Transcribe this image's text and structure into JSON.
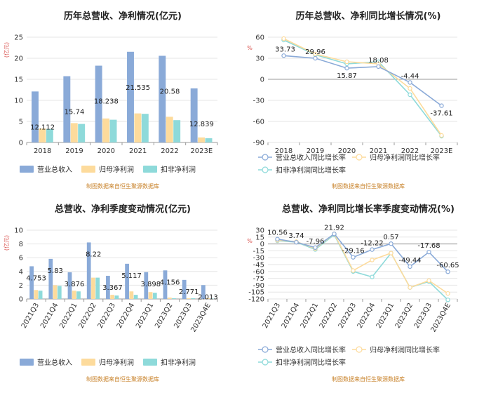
{
  "chart_data": [
    {
      "type": "bar",
      "title": "历年总营收、净利情况(亿元)",
      "unit": "(亿元)",
      "categories": [
        "2018",
        "2019",
        "2020",
        "2021",
        "2022",
        "2023E"
      ],
      "ylim": [
        0,
        25
      ],
      "yticks": [
        0,
        5,
        10,
        15,
        20,
        25
      ],
      "series": [
        {
          "name": "营业总收入",
          "values": [
            12.112,
            15.74,
            18.238,
            21.535,
            20.58,
            12.839
          ]
        },
        {
          "name": "归母净利润",
          "values": [
            3.3,
            4.6,
            5.7,
            6.9,
            6.1,
            1.2
          ]
        },
        {
          "name": "扣非净利润",
          "values": [
            3.2,
            4.4,
            5.4,
            6.8,
            5.3,
            1.0
          ]
        }
      ],
      "labels": [
        "12.112",
        "15.74",
        "18.238",
        "21.535",
        "20.58",
        "12.839"
      ],
      "source": "制图数据来自恒生聚源数据库"
    },
    {
      "type": "line",
      "title": "历年总营收、净利同比增长情况(%)",
      "unit": "%",
      "categories": [
        "2018",
        "2019",
        "2020",
        "2021",
        "2022",
        "2023E"
      ],
      "ylim": [
        -90,
        60
      ],
      "yticks": [
        60,
        30,
        0,
        -30,
        -60,
        -90
      ],
      "series": [
        {
          "name": "营业总收入同比增长率",
          "values": [
            33.73,
            29.96,
            15.87,
            18.08,
            -4.44,
            -37.61
          ]
        },
        {
          "name": "归母净利润同比增长率",
          "values": [
            58,
            36,
            25,
            22,
            -13,
            -80
          ]
        },
        {
          "name": "扣非净利润同比增长率",
          "values": [
            56,
            35,
            22,
            25,
            -22,
            -81
          ]
        }
      ],
      "labels": [
        "33.73",
        "29.96",
        "15.87",
        "18.08",
        "-4.44",
        "-37.61"
      ],
      "source": "制图数据来自恒生聚源数据库"
    },
    {
      "type": "bar",
      "title": "总营收、净利季度变动情况(亿元)",
      "unit": "(亿元)",
      "categories": [
        "2021Q3",
        "2021Q4",
        "2022Q1",
        "2022Q2",
        "2022Q3",
        "2022Q4",
        "2023Q1",
        "2023Q2",
        "2023Q3",
        "2023Q4E"
      ],
      "ylim": [
        0,
        10
      ],
      "yticks": [
        0,
        2,
        4,
        6,
        8,
        10
      ],
      "series": [
        {
          "name": "营业总收入",
          "values": [
            4.753,
            5.83,
            3.876,
            8.22,
            3.367,
            5.117,
            3.898,
            4.156,
            2.771,
            2.013
          ]
        },
        {
          "name": "归母净利润",
          "values": [
            1.3,
            2.0,
            1.2,
            3.1,
            0.6,
            1.1,
            1.0,
            0.2,
            0.1,
            0.1
          ]
        },
        {
          "name": "扣非净利润",
          "values": [
            1.2,
            1.9,
            1.1,
            3.1,
            0.5,
            0.6,
            0.9,
            0.1,
            0.1,
            0.05
          ]
        }
      ],
      "labels": [
        "4.753",
        "5.83",
        "3.876",
        "8.22",
        "3.367",
        "5.117",
        "3.898",
        "4.156",
        "2.771",
        "2.013"
      ],
      "source": "制图数据来自恒生聚源数据库"
    },
    {
      "type": "line",
      "title": "总营收、净利同比增长率季度变动情况(%)",
      "unit": "%",
      "categories": [
        "2021Q3",
        "2021Q4",
        "2022Q1",
        "2022Q2",
        "2022Q3",
        "2022Q4",
        "2023Q1",
        "2023Q2",
        "2023Q3",
        "2023Q4E"
      ],
      "ylim": [
        -120,
        30
      ],
      "yticks": [
        30,
        15,
        0,
        -15,
        -30,
        -45,
        -60,
        -75,
        -90,
        -105,
        -120
      ],
      "series": [
        {
          "name": "营业总收入同比增长率",
          "values": [
            10.56,
            3.74,
            -7.96,
            21.92,
            -29.16,
            -12.22,
            0.57,
            -49.44,
            -17.68,
            -60.65
          ]
        },
        {
          "name": "归母净利润同比增长率",
          "values": [
            8,
            5,
            -10,
            22,
            -58,
            -35,
            -20,
            -95,
            -80,
            -108
          ]
        },
        {
          "name": "扣非净利润同比增长率",
          "values": [
            7,
            4,
            -12,
            20,
            -60,
            -72,
            -20,
            -95,
            -82,
            -122
          ]
        }
      ],
      "labels": [
        "10.56",
        "3.74",
        "-7.96",
        "21.92",
        "-29.16",
        "-12.22",
        "0.57",
        "-49.44",
        "-17.68",
        "-60.65"
      ],
      "source": "制图数据来自恒生聚源数据库"
    }
  ],
  "colors": {
    "revenue": "#8aaad8",
    "net_profit": "#fddb9c",
    "deducted_profit": "#8edada"
  }
}
